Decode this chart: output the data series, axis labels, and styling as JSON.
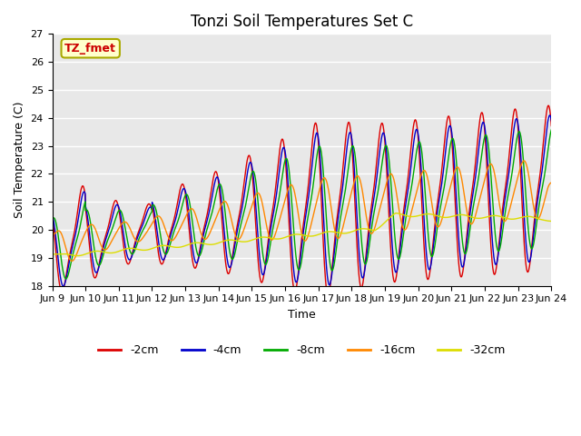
{
  "title": "Tonzi Soil Temperatures Set C",
  "xlabel": "Time",
  "ylabel": "Soil Temperature (C)",
  "ylim": [
    18.0,
    27.0
  ],
  "yticks": [
    18.0,
    19.0,
    20.0,
    21.0,
    22.0,
    23.0,
    24.0,
    25.0,
    26.0,
    27.0
  ],
  "xtick_labels": [
    "Jun 9",
    "Jun 10",
    "Jun 11",
    "Jun 12",
    "Jun 13",
    "Jun 14",
    "Jun 15",
    "Jun 16",
    "Jun 17",
    "Jun 18",
    "Jun 19",
    "Jun 20",
    "Jun 21",
    "Jun 22",
    "Jun 23",
    "Jun 24"
  ],
  "series_colors": [
    "#dd0000",
    "#0000cc",
    "#00aa00",
    "#ff8800",
    "#dddd00"
  ],
  "series_labels": [
    "-2cm",
    "-4cm",
    "-8cm",
    "-16cm",
    "-32cm"
  ],
  "annotation_text": "TZ_fmet",
  "annotation_bg": "#ffffcc",
  "annotation_border": "#aaaa00",
  "background_color": "#e8e8e8",
  "title_fontsize": 12,
  "label_fontsize": 9,
  "tick_fontsize": 8,
  "n_points": 1440,
  "n_days": 15,
  "figwidth": 6.4,
  "figheight": 4.8,
  "dpi": 100
}
